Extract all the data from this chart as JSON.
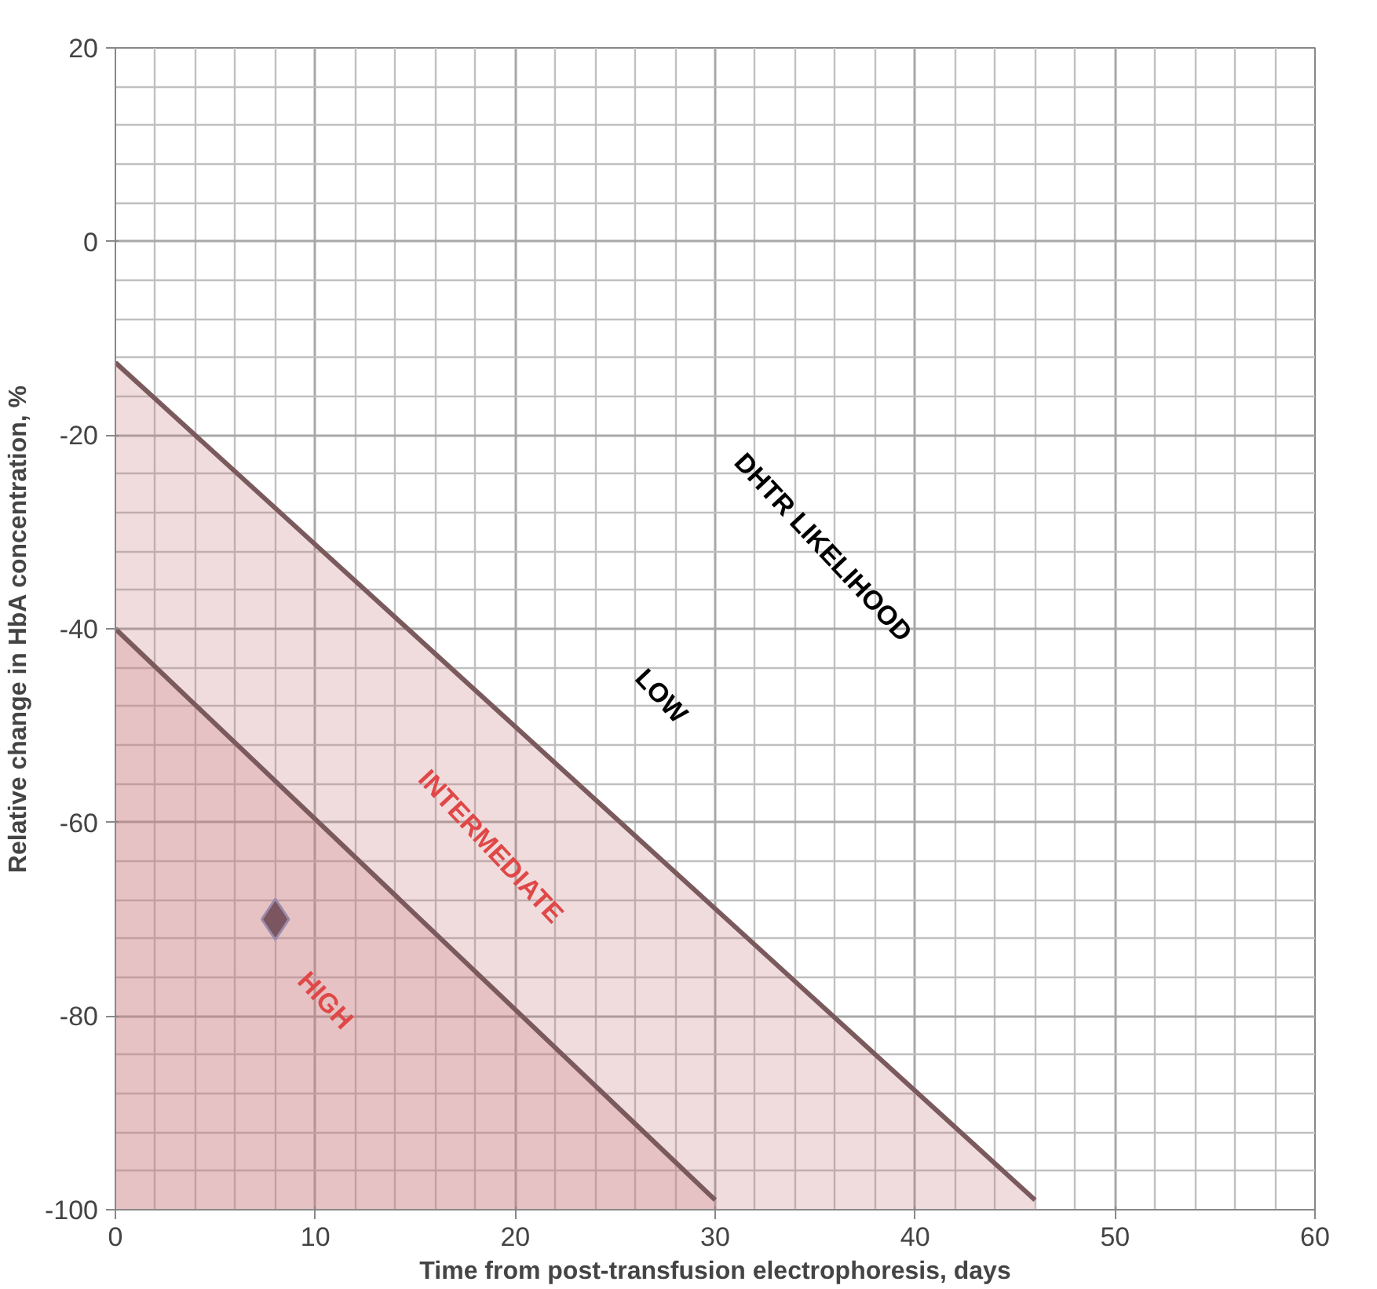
{
  "chart_data": {
    "type": "line",
    "xlabel": "Time from post-transfusion electrophoresis, days",
    "ylabel": "Relative change in HbA concentration, %",
    "xlim": [
      0,
      60
    ],
    "xticks": [
      0,
      10,
      20,
      30,
      40,
      50,
      60
    ],
    "ylim": [
      -100,
      20
    ],
    "yticks": [
      -100,
      -80,
      -60,
      -40,
      -20,
      0,
      20
    ],
    "grid": true,
    "series": [
      {
        "color": "#7a5a5c",
        "x": [
          0,
          46
        ],
        "values": [
          -12.5,
          -99
        ],
        "lower": [
          -100,
          -100
        ],
        "upper": [
          -12.5,
          -99
        ]
      },
      {
        "color": "#7a5a5c",
        "x": [
          0,
          30
        ],
        "values": [
          -40,
          -99
        ],
        "lower": [
          -100,
          -100
        ],
        "upper": [
          -40,
          -99
        ]
      },
      {
        "type": "scatter",
        "color": "#7b5560",
        "marker": "diamond",
        "x": [
          8
        ],
        "values": [
          -70
        ]
      }
    ],
    "annotations": [
      "DHTR LIKELIHOOD",
      "LOW",
      "INTERMEDIATE",
      "HIGH"
    ]
  }
}
